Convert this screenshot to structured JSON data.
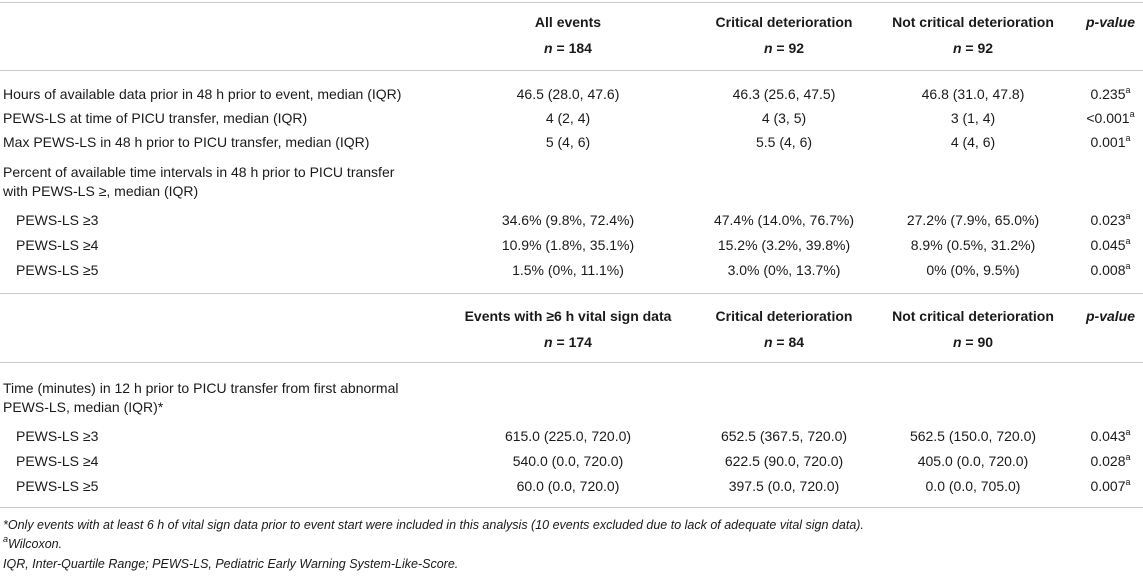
{
  "header1": {
    "col_all": "All events",
    "col_crit": "Critical deterioration",
    "col_notcrit": "Not critical deterioration",
    "col_p": "p-value",
    "n_label": "n",
    "n_all": "= 184",
    "n_crit": "= 92",
    "n_notcrit": "= 92"
  },
  "section1": {
    "rows": [
      {
        "label": "Hours of available data prior in 48 h prior to event, median (IQR)",
        "all": "46.5 (28.0, 47.6)",
        "crit": "46.3 (25.6, 47.5)",
        "notcrit": "46.8 (31.0, 47.8)",
        "p": "0.235",
        "sup": "a"
      },
      {
        "label": "PEWS-LS at time of PICU transfer, median (IQR)",
        "all": "4 (2, 4)",
        "crit": "4 (3, 5)",
        "notcrit": "3 (1, 4)",
        "p": "<0.001",
        "sup": "a"
      },
      {
        "label": "Max PEWS-LS in 48 h prior to PICU transfer, median (IQR)",
        "all": "5 (4, 6)",
        "crit": "5.5 (4, 6)",
        "notcrit": "4 (4, 6)",
        "p": "0.001",
        "sup": "a"
      }
    ],
    "group_label_1": "Percent of available time intervals in 48 h prior to PICU transfer",
    "group_label_2": "with PEWS-LS ≥, median (IQR)",
    "subrows": [
      {
        "label": "PEWS-LS ≥3",
        "all": "34.6% (9.8%, 72.4%)",
        "crit": "47.4% (14.0%, 76.7%)",
        "notcrit": "27.2% (7.9%, 65.0%)",
        "p": "0.023",
        "sup": "a"
      },
      {
        "label": "PEWS-LS ≥4",
        "all": "10.9% (1.8%, 35.1%)",
        "crit": "15.2% (3.2%, 39.8%)",
        "notcrit": "8.9% (0.5%, 31.2%)",
        "p": "0.045",
        "sup": "a"
      },
      {
        "label": "PEWS-LS ≥5",
        "all": "1.5% (0%, 11.1%)",
        "crit": "3.0% (0%, 13.7%)",
        "notcrit": "0% (0%, 9.5%)",
        "p": "0.008",
        "sup": "a"
      }
    ]
  },
  "header2": {
    "col_all": "Events with ≥6 h vital sign data",
    "col_crit": "Critical deterioration",
    "col_notcrit": "Not critical deterioration",
    "col_p": "p-value",
    "n_label": "n",
    "n_all": "= 174",
    "n_crit": "= 84",
    "n_notcrit": "= 90"
  },
  "section2": {
    "group_label_1": "Time (minutes) in 12 h prior to PICU transfer from first abnormal",
    "group_label_2": "PEWS-LS, median (IQR)*",
    "subrows": [
      {
        "label": "PEWS-LS ≥3",
        "all": "615.0 (225.0, 720.0)",
        "crit": "652.5 (367.5, 720.0)",
        "notcrit": "562.5 (150.0, 720.0)",
        "p": "0.043",
        "sup": "a"
      },
      {
        "label": "PEWS-LS ≥4",
        "all": "540.0 (0.0, 720.0)",
        "crit": "622.5 (90.0, 720.0)",
        "notcrit": "405.0 (0.0, 720.0)",
        "p": "0.028",
        "sup": "a"
      },
      {
        "label": "PEWS-LS ≥5",
        "all": "60.0 (0.0, 720.0)",
        "crit": "397.5 (0.0, 720.0)",
        "notcrit": "0.0 (0.0, 705.0)",
        "p": "0.007",
        "sup": "a"
      }
    ]
  },
  "footnotes": {
    "star": "*Only events with at least 6 h of vital sign data prior to event start were included in this analysis (10 events excluded due to lack of adequate vital sign data).",
    "a_sup": "a",
    "a_text": "Wilcoxon.",
    "abbrev": "IQR, Inter-Quartile Range; PEWS-LS, Pediatric Early Warning System-Like-Score."
  }
}
